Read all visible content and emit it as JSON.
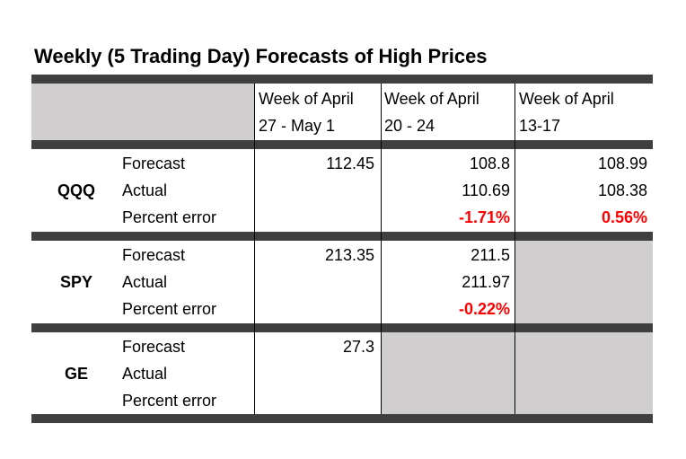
{
  "title": "Weekly (5 Trading Day) Forecasts of High Prices",
  "columns": [
    {
      "line1": "Week of April",
      "line2": "27 - May 1"
    },
    {
      "line1": "Week of April",
      "line2": "20 - 24"
    },
    {
      "line1": "Week of April",
      "line2": "13-17"
    }
  ],
  "row_labels": [
    "Forecast",
    "Actual",
    "Percent error"
  ],
  "groups": [
    {
      "ticker": "QQQ",
      "cells": [
        [
          "112.45",
          "108.8",
          "108.99"
        ],
        [
          "",
          "110.69",
          "108.38"
        ],
        [
          "",
          "-1.71%",
          "0.56%"
        ]
      ]
    },
    {
      "ticker": "SPY",
      "cells": [
        [
          "213.35",
          "211.5",
          ""
        ],
        [
          "",
          "211.97",
          ""
        ],
        [
          "",
          "-0.22%",
          ""
        ]
      ]
    },
    {
      "ticker": "GE",
      "cells": [
        [
          "27.3",
          "",
          ""
        ],
        [
          "",
          "",
          ""
        ],
        [
          "",
          "",
          ""
        ]
      ]
    }
  ],
  "colors": {
    "bar": "#3f3f3f",
    "shade": "#d0cece",
    "error_text": "#ff0000"
  }
}
